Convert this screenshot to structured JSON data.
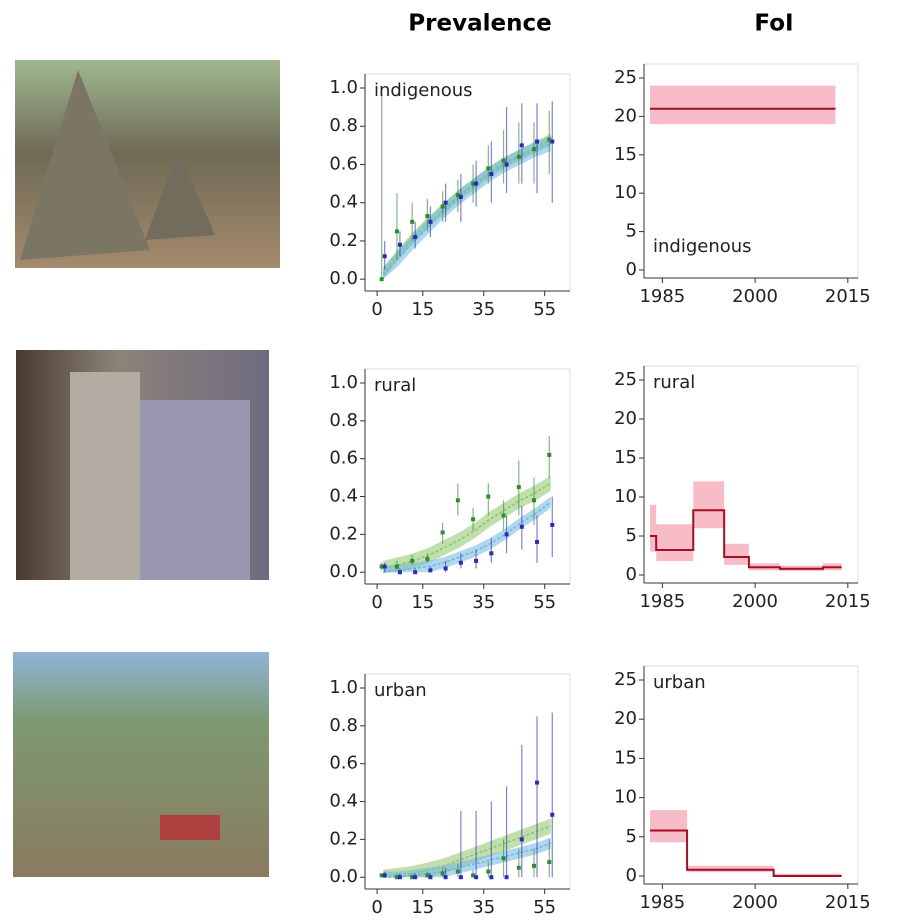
{
  "column_titles": [
    "Prevalence",
    "FoI"
  ],
  "chart_data": [
    {
      "type": "prevalence",
      "label": "indigenous",
      "xlim": [
        -2,
        62
      ],
      "ylim": [
        -0.02,
        1.0
      ],
      "xticks": [
        0,
        15,
        35,
        55
      ],
      "yticks": [
        {
          "value": 0,
          "label": "0.0"
        },
        {
          "value": 0.2,
          "label": "0.2"
        },
        {
          "value": 0.4,
          "label": "0.4"
        },
        {
          "value": 0.6,
          "label": "0.6"
        },
        {
          "value": 0.8,
          "label": "0.8"
        },
        {
          "value": 1.0,
          "label": "1.0"
        }
      ],
      "x": [
        2,
        7,
        12,
        17,
        22,
        27,
        32,
        37,
        42,
        47,
        52,
        57
      ],
      "series": [
        {
          "style": "band",
          "color": "#8cc46a",
          "values": [
            0.03,
            0.13,
            0.22,
            0.3,
            0.37,
            0.44,
            0.5,
            0.56,
            0.61,
            0.65,
            0.69,
            0.73
          ],
          "lower": [
            0,
            0.1,
            0.19,
            0.27,
            0.34,
            0.41,
            0.47,
            0.53,
            0.58,
            0.62,
            0.66,
            0.7
          ],
          "upper": [
            0.06,
            0.16,
            0.25,
            0.33,
            0.4,
            0.47,
            0.53,
            0.59,
            0.64,
            0.68,
            0.72,
            0.76
          ]
        },
        {
          "style": "band",
          "color": "#6fb7e0",
          "values": [
            0.02,
            0.11,
            0.2,
            0.28,
            0.36,
            0.43,
            0.49,
            0.55,
            0.6,
            0.64,
            0.68,
            0.71
          ],
          "lower": [
            0,
            0.07,
            0.16,
            0.24,
            0.32,
            0.39,
            0.45,
            0.51,
            0.56,
            0.6,
            0.64,
            0.67
          ],
          "upper": [
            0.06,
            0.15,
            0.24,
            0.32,
            0.4,
            0.47,
            0.53,
            0.59,
            0.64,
            0.68,
            0.72,
            0.75
          ]
        },
        {
          "style": "points",
          "color": "#2e8b2e",
          "values": [
            0.0,
            0.25,
            0.3,
            0.33,
            0.38,
            0.44,
            0.5,
            0.58,
            0.62,
            0.64,
            0.68,
            0.73
          ],
          "lower": [
            0,
            0.1,
            0.2,
            0.25,
            0.3,
            0.35,
            0.4,
            0.5,
            0.5,
            0.5,
            0.5,
            0.55
          ],
          "upper": [
            0.97,
            0.45,
            0.4,
            0.42,
            0.46,
            0.52,
            0.6,
            0.7,
            0.78,
            0.82,
            0.82,
            0.88
          ]
        },
        {
          "style": "points",
          "color": "#2b2bb5",
          "values": [
            0.12,
            0.18,
            0.22,
            0.3,
            0.4,
            0.43,
            0.5,
            0.55,
            0.6,
            0.7,
            0.72,
            0.72
          ],
          "lower": [
            0.05,
            0.12,
            0.16,
            0.22,
            0.3,
            0.3,
            0.38,
            0.4,
            0.45,
            0.5,
            0.45,
            0.4
          ],
          "upper": [
            0.2,
            0.25,
            0.3,
            0.38,
            0.5,
            0.55,
            0.62,
            0.72,
            0.9,
            0.92,
            0.92,
            0.93
          ]
        }
      ]
    },
    {
      "type": "foi",
      "label": "indigenous",
      "xlim": [
        1983,
        2016
      ],
      "ylim": [
        0,
        25
      ],
      "xticks": [
        1985,
        2000,
        2015
      ],
      "yticks": [
        0,
        5,
        10,
        15,
        20,
        25
      ],
      "x": [
        1983,
        2013
      ],
      "color": "#a01020",
      "band_color": "#f4a6b4",
      "values": [
        21,
        21
      ],
      "lower": [
        19,
        19
      ],
      "upper": [
        24,
        24
      ]
    },
    {
      "type": "prevalence",
      "label": "rural",
      "xlim": [
        -2,
        62
      ],
      "ylim": [
        -0.02,
        1.0
      ],
      "xticks": [
        0,
        15,
        35,
        55
      ],
      "yticks": [
        {
          "value": 0,
          "label": "0.0"
        },
        {
          "value": 0.2,
          "label": "0.2"
        },
        {
          "value": 0.4,
          "label": "0.4"
        },
        {
          "value": 0.6,
          "label": "0.6"
        },
        {
          "value": 0.8,
          "label": "0.8"
        },
        {
          "value": 1.0,
          "label": "1.0"
        }
      ],
      "x": [
        2,
        7,
        12,
        17,
        22,
        27,
        32,
        37,
        42,
        47,
        52,
        57
      ],
      "series": [
        {
          "style": "band",
          "color": "#8cc46a",
          "values": [
            0.02,
            0.04,
            0.06,
            0.09,
            0.13,
            0.17,
            0.22,
            0.28,
            0.33,
            0.38,
            0.42,
            0.47
          ],
          "lower": [
            0,
            0,
            0.02,
            0.05,
            0.09,
            0.13,
            0.18,
            0.24,
            0.29,
            0.34,
            0.38,
            0.43
          ],
          "upper": [
            0.06,
            0.08,
            0.1,
            0.13,
            0.17,
            0.21,
            0.26,
            0.32,
            0.37,
            0.42,
            0.46,
            0.51
          ]
        },
        {
          "style": "band",
          "color": "#6fb7e0",
          "values": [
            0.0,
            0.01,
            0.02,
            0.03,
            0.05,
            0.08,
            0.11,
            0.15,
            0.2,
            0.26,
            0.31,
            0.37
          ],
          "lower": [
            0,
            0,
            0,
            0,
            0.02,
            0.05,
            0.08,
            0.12,
            0.17,
            0.23,
            0.28,
            0.34
          ],
          "upper": [
            0.03,
            0.04,
            0.05,
            0.06,
            0.08,
            0.11,
            0.14,
            0.18,
            0.23,
            0.29,
            0.34,
            0.4
          ]
        },
        {
          "style": "points",
          "color": "#2e8b2e",
          "values": [
            0.03,
            0.03,
            0.06,
            0.07,
            0.21,
            0.38,
            0.28,
            0.4,
            0.3,
            0.45,
            0.38,
            0.62
          ],
          "lower": [
            0.01,
            0.01,
            0.04,
            0.05,
            0.15,
            0.3,
            0.22,
            0.3,
            0.22,
            0.3,
            0.25,
            0.5
          ],
          "upper": [
            0.05,
            0.06,
            0.09,
            0.1,
            0.26,
            0.47,
            0.34,
            0.47,
            0.38,
            0.59,
            0.5,
            0.72
          ]
        },
        {
          "style": "points",
          "color": "#2b2bb5",
          "values": [
            0.03,
            0.0,
            0.0,
            0.01,
            0.02,
            0.05,
            0.06,
            0.1,
            0.2,
            0.24,
            0.16,
            0.25
          ],
          "lower": [
            0,
            0,
            0,
            0,
            0,
            0.02,
            0.02,
            0.05,
            0.1,
            0.12,
            0.05,
            0.08
          ],
          "upper": [
            0.05,
            0.02,
            0.02,
            0.03,
            0.06,
            0.1,
            0.12,
            0.18,
            0.3,
            0.35,
            0.3,
            0.4
          ]
        }
      ]
    },
    {
      "type": "foi",
      "label": "rural",
      "xlim": [
        1983,
        2016
      ],
      "ylim": [
        0,
        25
      ],
      "xticks": [
        1985,
        2000,
        2015
      ],
      "yticks": [
        0,
        5,
        10,
        15,
        20,
        25
      ],
      "x": [
        1983,
        1984,
        1990,
        1995,
        1999,
        2004,
        2011,
        2014
      ],
      "color": "#a01020",
      "band_color": "#f4a6b4",
      "values": [
        5,
        3.2,
        8.3,
        2.3,
        1.0,
        0.8,
        1.0,
        1.0
      ],
      "lower": [
        3,
        1.8,
        6,
        1.3,
        0.6,
        0.5,
        0.6,
        0.6
      ],
      "upper": [
        9,
        6.5,
        12,
        4,
        1.5,
        1.2,
        1.5,
        1.5
      ]
    },
    {
      "type": "prevalence",
      "label": "urban",
      "xlim": [
        -2,
        62
      ],
      "ylim": [
        -0.02,
        1.0
      ],
      "xticks": [
        0,
        15,
        35,
        55
      ],
      "yticks": [
        {
          "value": 0,
          "label": "0.0"
        },
        {
          "value": 0.2,
          "label": "0.2"
        },
        {
          "value": 0.4,
          "label": "0.4"
        },
        {
          "value": 0.6,
          "label": "0.6"
        },
        {
          "value": 0.8,
          "label": "0.8"
        },
        {
          "value": 1.0,
          "label": "1.0"
        }
      ],
      "x": [
        2,
        7,
        12,
        17,
        22,
        27,
        32,
        37,
        42,
        47,
        52,
        57
      ],
      "series": [
        {
          "style": "band",
          "color": "#8cc46a",
          "values": [
            0.0,
            0.01,
            0.02,
            0.04,
            0.06,
            0.09,
            0.12,
            0.15,
            0.18,
            0.21,
            0.24,
            0.27
          ],
          "lower": [
            0,
            0,
            0,
            0,
            0.02,
            0.05,
            0.08,
            0.11,
            0.14,
            0.17,
            0.2,
            0.23
          ],
          "upper": [
            0.04,
            0.05,
            0.06,
            0.08,
            0.1,
            0.13,
            0.16,
            0.19,
            0.22,
            0.25,
            0.28,
            0.31
          ]
        },
        {
          "style": "band",
          "color": "#6fb7e0",
          "values": [
            0.0,
            0.0,
            0.01,
            0.02,
            0.03,
            0.05,
            0.07,
            0.09,
            0.11,
            0.13,
            0.15,
            0.18
          ],
          "lower": [
            0,
            0,
            0,
            0,
            0,
            0.02,
            0.04,
            0.06,
            0.08,
            0.1,
            0.12,
            0.15
          ],
          "upper": [
            0.03,
            0.03,
            0.04,
            0.05,
            0.06,
            0.08,
            0.1,
            0.12,
            0.14,
            0.16,
            0.18,
            0.21
          ]
        },
        {
          "style": "points",
          "color": "#2e8b2e",
          "values": [
            0.01,
            0.0,
            0.0,
            0.01,
            0.02,
            0.03,
            0.01,
            0.03,
            0.1,
            0.05,
            0.06,
            0.08
          ],
          "lower": [
            0,
            0,
            0,
            0,
            0,
            0,
            0,
            0,
            0,
            0,
            0,
            0
          ],
          "upper": [
            0.02,
            0.02,
            0.02,
            0.03,
            0.05,
            0.07,
            0.04,
            0.08,
            0.2,
            0.15,
            0.15,
            0.2
          ]
        },
        {
          "style": "points",
          "color": "#2b2bb5",
          "values": [
            0.01,
            0.0,
            0.0,
            0.0,
            0.0,
            0.0,
            0.0,
            0.0,
            0.0,
            0.2,
            0.5,
            0.33
          ],
          "lower": [
            0,
            0,
            0,
            0,
            0,
            0,
            0,
            0,
            0,
            0,
            0,
            0
          ],
          "upper": [
            0.03,
            0.02,
            0.02,
            0.02,
            0.05,
            0.35,
            0.35,
            0.4,
            0.48,
            0.7,
            0.85,
            0.87
          ]
        }
      ]
    },
    {
      "type": "foi",
      "label": "urban",
      "xlim": [
        1983,
        2016
      ],
      "ylim": [
        0,
        25
      ],
      "xticks": [
        1985,
        2000,
        2015
      ],
      "yticks": [
        0,
        5,
        10,
        15,
        20,
        25
      ],
      "x": [
        1983,
        1989,
        2003,
        2014
      ],
      "color": "#a01020",
      "band_color": "#f4a6b4",
      "values": [
        5.8,
        0.8,
        0,
        0
      ],
      "lower": [
        4.3,
        0.5,
        0,
        0
      ],
      "upper": [
        8.4,
        1.3,
        0.3,
        0.3
      ]
    }
  ]
}
